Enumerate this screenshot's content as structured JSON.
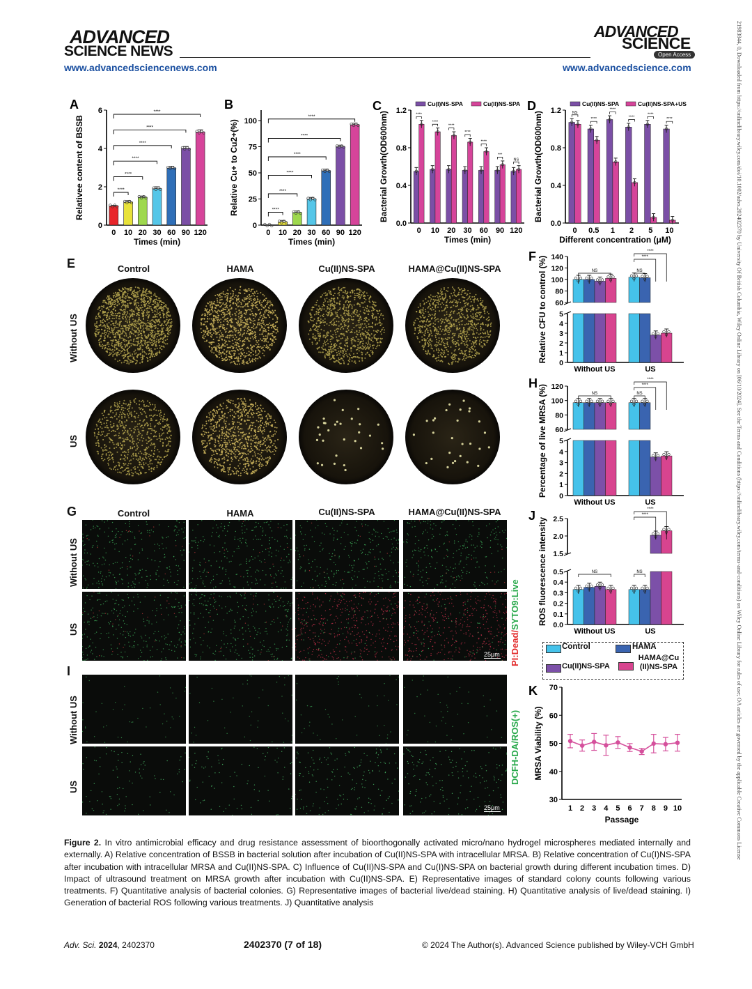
{
  "header": {
    "left_logo_line1": "ADVANCED",
    "left_logo_line2": "SCIENCE NEWS",
    "right_logo_line1": "ADVANCED",
    "right_logo_line2": "SCIENCE",
    "right_badge": "Open Access",
    "left_url": "www.advancedsciencenews.com",
    "right_url": "www.advancedscience.com"
  },
  "side_note": "21983844, 0, Downloaded from https://onlinelibrary.wiley.com/doi/10.1002/advs.202402370 by University Of British Columbia, Wiley Online Library on [06/10/2024]. See the Terms and Conditions (https://onlinelibrary.wiley.com/terms-and-conditions) on Wiley Online Library for rules of use; OA articles are governed by the applicable Creative Commons License",
  "panels": {
    "E": {
      "label": "E",
      "cols": [
        "Control",
        "HAMA",
        "Cu(II)NS-SPA",
        "HAMA@Cu(II)NS-SPA"
      ],
      "rows": [
        "Without US",
        "US"
      ]
    },
    "G": {
      "label": "G",
      "cols": [
        "Control",
        "HAMA",
        "Cu(II)NS-SPA",
        "HAMA@Cu(II)NS-SPA"
      ],
      "rows": [
        "Without US",
        "US"
      ],
      "stain_dead": "PI:Dead/",
      "stain_live": "SYTO9:Live",
      "scale": "25μm"
    },
    "I": {
      "label": "I",
      "rows": [
        "Without US",
        "US"
      ],
      "stain": "DCFH-DA/ROS(+)",
      "scale": "25μm"
    }
  },
  "legend_J": {
    "items": [
      "Control",
      "HAMA",
      "Cu(II)NS-SPA",
      "HAMA@Cu (II)NS-SPA"
    ]
  },
  "colors": {
    "red": "#e8252a",
    "yellow": "#e8e23a",
    "green": "#9ed84e",
    "cyan": "#55c6e8",
    "blue": "#2f6fb8",
    "purple": "#7b4fa6",
    "pink": "#d6449a",
    "cyanF": "#45c2ea",
    "blueF": "#3a64b0",
    "purpleF": "#7c50a8",
    "pinkF": "#d8448f",
    "lineK": "#d5509c",
    "link": "#1a4fa0"
  },
  "caption": {
    "fig": "Figure 2.",
    "text": "In vitro antimicrobial efficacy and drug resistance assessment of bioorthogonally activated micro/nano hydrogel microspheres mediated internally and externally. A) Relative concentration of BSSB in bacterial solution after incubation of Cu(II)NS-SPA with intracellular MRSA. B) Relative concentration of Cu(I)NS-SPA after incubation with intracellular MRSA and Cu(II)NS-SPA. C) Influence of Cu(II)NS-SPA and Cu(I)NS-SPA on bacterial growth during different incubation times. D) Impact of ultrasound treatment on MRSA growth after incubation with Cu(II)NS-SPA. E) Representative images of standard colony counts following various treatments. F) Quantitative analysis of bacterial colonies. G) Representative images of bacterial live/dead staining. H) Quantitative analysis of live/dead staining. I) Generation of bacterial ROS following various treatments. J) Quantitative analysis"
  },
  "footer": {
    "journal": "Adv. Sci.",
    "year": "2024",
    "article": ", 2402370",
    "page": "2402370 (7 of 18)",
    "copyright": "© 2024 The Author(s). Advanced Science published by Wiley-VCH GmbH"
  },
  "chart_data": [
    {
      "id": "A",
      "type": "bar",
      "label": "A",
      "categories": [
        "0",
        "10",
        "20",
        "30",
        "60",
        "90",
        "120"
      ],
      "values": [
        1.0,
        1.2,
        1.45,
        1.9,
        2.98,
        4.0,
        4.85
      ],
      "errors": [
        0.03,
        0.08,
        0.07,
        0.1,
        0.09,
        0.1,
        0.12
      ],
      "colors": [
        "#e8252a",
        "#e8e23a",
        "#9ed84e",
        "#55c6e8",
        "#2f6fb8",
        "#7b4fa6",
        "#d6449a"
      ],
      "ylabel": "Relativee content of BSSB",
      "xlabel": "Times (min)",
      "ylim": [
        0,
        6
      ],
      "yticks": [
        "0",
        "2",
        "4",
        "6"
      ],
      "sig": "****"
    },
    {
      "id": "B",
      "type": "bar",
      "label": "B",
      "categories": [
        "0",
        "10",
        "20",
        "30",
        "60",
        "90",
        "120"
      ],
      "values": [
        0,
        3,
        12,
        25,
        52,
        75,
        96
      ],
      "errors": [
        0,
        1.5,
        1.5,
        1.5,
        1.5,
        1.5,
        1.5
      ],
      "colors": [
        "#e8252a",
        "#e8e23a",
        "#9ed84e",
        "#55c6e8",
        "#2f6fb8",
        "#7b4fa6",
        "#d6449a"
      ],
      "ylabel": "Relative Cu+ to Cu2+(%)",
      "xlabel": "Times (min)",
      "ylim": [
        0,
        110
      ],
      "yticks": [
        "0",
        "25",
        "50",
        "75",
        "100"
      ],
      "sig": "****"
    },
    {
      "id": "C",
      "type": "bar",
      "label": "C",
      "categories": [
        "0",
        "10",
        "20",
        "30",
        "60",
        "90",
        "120"
      ],
      "series": [
        {
          "name": "Cu(I)NS-SPA",
          "color": "#7b4fa6",
          "values": [
            0.55,
            0.57,
            0.57,
            0.56,
            0.56,
            0.56,
            0.55
          ]
        },
        {
          "name": "Cu(II)NS-SPA",
          "color": "#d6449a",
          "values": [
            1.05,
            0.97,
            0.93,
            0.86,
            0.76,
            0.62,
            0.57
          ]
        }
      ],
      "sigs": [
        "****",
        "****",
        "****",
        "****",
        "****",
        "***",
        "NS"
      ],
      "ylabel": "Bacterial Growth(OD600nm)",
      "xlabel": "Times (min)",
      "ylim": [
        0,
        1.2
      ],
      "yticks": [
        "0.0",
        "0.4",
        "0.8",
        "1.2"
      ]
    },
    {
      "id": "D",
      "type": "bar",
      "label": "D",
      "categories": [
        "0",
        "0.5",
        "1",
        "2",
        "5",
        "10"
      ],
      "series": [
        {
          "name": "Cu(II)NS-SPA",
          "color": "#7b4fa6",
          "values": [
            1.07,
            1.0,
            1.1,
            1.02,
            1.05,
            1.0
          ]
        },
        {
          "name": "Cu(II)NS-SPA+US",
          "color": "#d6449a",
          "values": [
            1.05,
            0.88,
            0.65,
            0.43,
            0.06,
            0.03
          ]
        }
      ],
      "sigs": [
        "NS",
        "****",
        "****",
        "****",
        "****",
        "****"
      ],
      "ylabel": "Bacterial Growth(OD600nm)",
      "xlabel": "Different concentration (μM)",
      "ylim": [
        0,
        1.2
      ],
      "yticks": [
        "0.0",
        "0.4",
        "0.8",
        "1.2"
      ]
    },
    {
      "id": "F",
      "type": "bar",
      "label": "F",
      "categories": [
        "Without US",
        "US"
      ],
      "series": [
        {
          "name": "Control",
          "color": "#45c2ea",
          "values": [
            100,
            104
          ]
        },
        {
          "name": "HAMA",
          "color": "#3a64b0",
          "values": [
            100,
            103
          ]
        },
        {
          "name": "Cu(II)NS-SPA",
          "color": "#7c50a8",
          "values": [
            97,
            2.8
          ]
        },
        {
          "name": "HAMA@Cu (II)NS-SPA",
          "color": "#d8448f",
          "values": [
            102,
            3.0
          ]
        }
      ],
      "ylabel": "Relative CFU to control (%)",
      "yticks_upper": [
        "60",
        "80",
        "100",
        "120",
        "140"
      ],
      "yticks_lower": [
        "0",
        "1",
        "2",
        "3",
        "4",
        "5"
      ],
      "sigs": [
        "NS",
        "NS",
        "****",
        "****"
      ]
    },
    {
      "id": "H",
      "type": "bar",
      "label": "H",
      "categories": [
        "Without US",
        "US"
      ],
      "series": [
        {
          "name": "Control",
          "color": "#45c2ea",
          "values": [
            97,
            97
          ]
        },
        {
          "name": "HAMA",
          "color": "#3a64b0",
          "values": [
            97,
            97
          ]
        },
        {
          "name": "Cu(II)NS-SPA",
          "color": "#7c50a8",
          "values": [
            97,
            3.5
          ]
        },
        {
          "name": "HAMA@Cu (II)NS-SPA",
          "color": "#d8448f",
          "values": [
            97,
            3.6
          ]
        }
      ],
      "ylabel": "Percentage of live MRSA (%)",
      "yticks_upper": [
        "60",
        "80",
        "100",
        "120"
      ],
      "yticks_lower": [
        "0",
        "1",
        "2",
        "3",
        "4",
        "5"
      ],
      "sigs": [
        "NS",
        "NS",
        "****",
        "****"
      ]
    },
    {
      "id": "J",
      "type": "bar",
      "label": "J",
      "categories": [
        "Without US",
        "US"
      ],
      "series": [
        {
          "name": "Control",
          "color": "#45c2ea",
          "values": [
            0.33,
            0.33
          ]
        },
        {
          "name": "HAMA",
          "color": "#3a64b0",
          "values": [
            0.35,
            0.33
          ]
        },
        {
          "name": "Cu(II)NS-SPA",
          "color": "#7c50a8",
          "values": [
            0.36,
            2.02
          ]
        },
        {
          "name": "HAMA@Cu (II)NS-SPA",
          "color": "#d8448f",
          "values": [
            0.33,
            2.15
          ]
        }
      ],
      "ylabel": "ROS fluorescence intensity",
      "yticks_upper": [
        "1.5",
        "2.0",
        "2.5"
      ],
      "yticks_lower": [
        "0.0",
        "0.1",
        "0.2",
        "0.3",
        "0.4",
        "0.5"
      ],
      "sigs": [
        "NS",
        "NS",
        "****",
        "****"
      ]
    },
    {
      "id": "K",
      "type": "line",
      "label": "K",
      "x": [
        1,
        2,
        3,
        4,
        5,
        6,
        7,
        8,
        9,
        10
      ],
      "y": [
        50.8,
        49.2,
        50.5,
        49.3,
        50.3,
        48.5,
        47.1,
        49.9,
        49.7,
        50.2
      ],
      "errors": [
        2.4,
        2.0,
        3.0,
        3.6,
        2.1,
        1.4,
        1.1,
        3.3,
        2.4,
        3.0
      ],
      "ylabel": "MRSA Viability (%)",
      "xlabel": "Passage",
      "ylim": [
        30,
        70
      ],
      "yticks": [
        "30",
        "40",
        "50",
        "60",
        "70"
      ]
    }
  ]
}
